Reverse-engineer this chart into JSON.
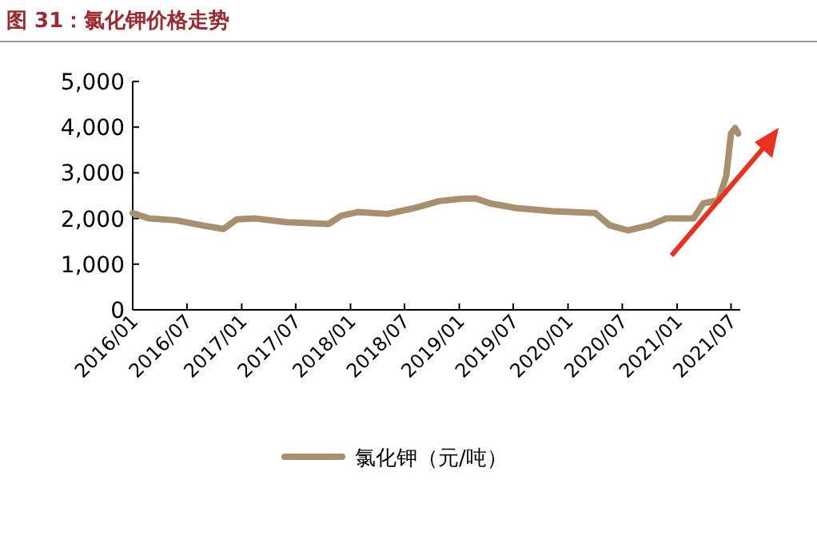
{
  "chart_data": {
    "type": "line",
    "title": "图 31：氯化钾价格走势",
    "x": [
      "2016-01-01",
      "2016-02-25",
      "2016-05-25",
      "2016-08-20",
      "2016-11-01",
      "2016-12-15",
      "2017-02-15",
      "2017-06-01",
      "2017-10-20",
      "2017-12-01",
      "2018-01-25",
      "2018-05-05",
      "2018-08-05",
      "2018-10-25",
      "2019-01-05",
      "2019-02-25",
      "2019-04-15",
      "2019-07-10",
      "2019-11-10",
      "2020-04-01",
      "2020-05-20",
      "2020-07-20",
      "2020-10-01",
      "2020-11-25",
      "2021-02-25",
      "2021-03-30",
      "2021-05-20",
      "2021-06-15",
      "2021-07-01",
      "2021-07-15",
      "2021-07-25"
    ],
    "series": [
      {
        "name": "氯化钾（元/吨）",
        "color": "#a8906f",
        "values": [
          2120,
          2000,
          1960,
          1850,
          1770,
          1980,
          2000,
          1920,
          1880,
          2060,
          2140,
          2100,
          2230,
          2380,
          2430,
          2440,
          2330,
          2230,
          2160,
          2120,
          1850,
          1740,
          1850,
          2000,
          2000,
          2330,
          2400,
          2930,
          3860,
          3980,
          3860
        ]
      }
    ],
    "xlim": [
      "2016-01-01",
      "2021-08-01"
    ],
    "xticks": [
      {
        "value": "2016-01-01",
        "label": "2016/01"
      },
      {
        "value": "2016-07-01",
        "label": "2016/07"
      },
      {
        "value": "2017-01-01",
        "label": "2017/01"
      },
      {
        "value": "2017-07-01",
        "label": "2017/07"
      },
      {
        "value": "2018-01-01",
        "label": "2018/01"
      },
      {
        "value": "2018-07-01",
        "label": "2018/07"
      },
      {
        "value": "2019-01-01",
        "label": "2019/01"
      },
      {
        "value": "2019-07-01",
        "label": "2019/07"
      },
      {
        "value": "2020-01-01",
        "label": "2020/01"
      },
      {
        "value": "2020-07-01",
        "label": "2020/07"
      },
      {
        "value": "2021-01-01",
        "label": "2021/01"
      },
      {
        "value": "2021-07-01",
        "label": "2021/07"
      }
    ],
    "ylim": [
      0,
      5000
    ],
    "yticks": [
      0,
      {
        "value": 1000,
        "label": "1,000"
      },
      {
        "value": 2000,
        "label": "2,000"
      },
      {
        "value": 3000,
        "label": "3,000"
      },
      {
        "value": 4000,
        "label": "4,000"
      },
      {
        "value": 5000,
        "label": "5,000"
      }
    ],
    "grid": false,
    "legend": "bottom",
    "marker": "none",
    "line_style": "solid"
  }
}
